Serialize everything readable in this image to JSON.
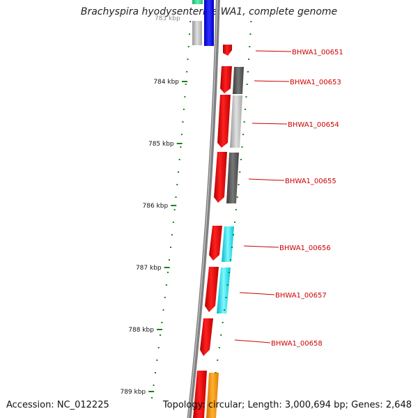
{
  "title": "Brachyspira hyodysenteriae WA1, complete genome",
  "footer": {
    "accession": "Accession: NC_012225",
    "summary": "Topology: circular; Length: 3,000,694 bp; Genes: 2,648"
  },
  "scale": {
    "ticks": [
      {
        "label": "784 kbp",
        "value": 784
      },
      {
        "label": "785 kbp",
        "value": 785
      },
      {
        "label": "786 kbp",
        "value": 786
      },
      {
        "label": "787 kbp",
        "value": 787
      },
      {
        "label": "788 kbp",
        "value": 788
      },
      {
        "label": "789 kbp",
        "value": 789
      }
    ],
    "tick_color": "#1a7f1a"
  },
  "genes": [
    {
      "label": "BHWA1_00651"
    },
    {
      "label": "BHWA1_00653"
    },
    {
      "label": "BHWA1_00654"
    },
    {
      "label": "BHWA1_00655"
    },
    {
      "label": "BHWA1_00656"
    },
    {
      "label": "BHWA1_00657"
    },
    {
      "label": "BHWA1_00658"
    }
  ],
  "colors": {
    "backbone": "#808080",
    "cds": "#ff0000",
    "label": "#cc0000"
  }
}
